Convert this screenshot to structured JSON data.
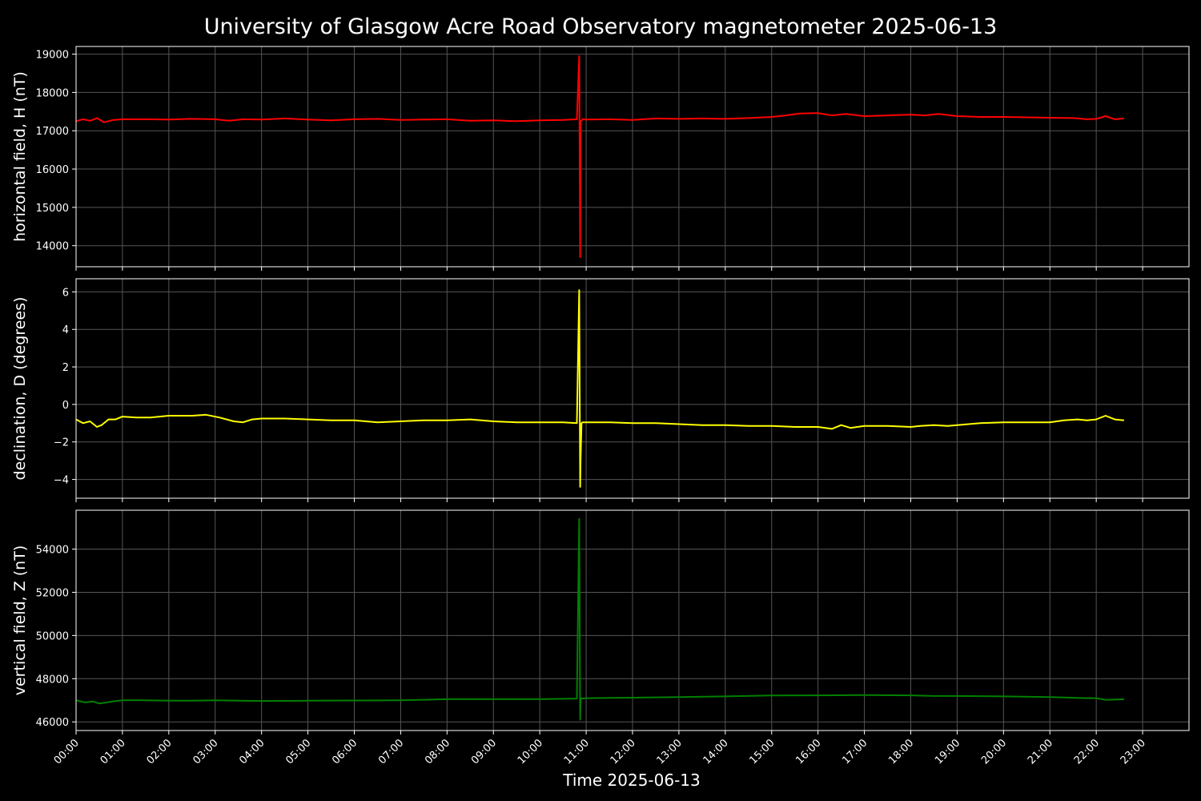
{
  "chart_data": {
    "type": "line",
    "title": "University of Glasgow Acre Road Observatory magnetometer 2025-06-13",
    "xlabel": "Time 2025-06-13",
    "x_ticks": [
      "00:00",
      "01:00",
      "02:00",
      "03:00",
      "04:00",
      "05:00",
      "06:00",
      "07:00",
      "08:00",
      "09:00",
      "10:00",
      "11:00",
      "12:00",
      "13:00",
      "14:00",
      "15:00",
      "16:00",
      "17:00",
      "18:00",
      "19:00",
      "20:00",
      "21:00",
      "22:00",
      "23:00"
    ],
    "xlim_hours": [
      0,
      24
    ],
    "grid": true,
    "panels": [
      {
        "ylabel": "horizontal field, H (nT)",
        "color": "#ff0000",
        "ylim": [
          13450,
          19200
        ],
        "y_ticks": [
          14000,
          15000,
          16000,
          17000,
          18000,
          19000
        ],
        "series": {
          "x": [
            0.0,
            0.15,
            0.3,
            0.45,
            0.6,
            0.8,
            1.0,
            1.5,
            2.0,
            2.5,
            3.0,
            3.3,
            3.6,
            4.0,
            4.5,
            5.0,
            5.5,
            6.0,
            6.5,
            7.0,
            7.5,
            8.0,
            8.5,
            9.0,
            9.5,
            10.0,
            10.5,
            10.8,
            10.85,
            10.87,
            10.88,
            10.9,
            10.92,
            11.0,
            11.5,
            12.0,
            12.5,
            13.0,
            13.5,
            14.0,
            14.5,
            15.0,
            15.3,
            15.6,
            16.0,
            16.3,
            16.6,
            17.0,
            17.5,
            18.0,
            18.3,
            18.6,
            19.0,
            19.5,
            20.0,
            20.5,
            21.0,
            21.5,
            21.8,
            22.0,
            22.2,
            22.4,
            22.6
          ],
          "y": [
            17250,
            17300,
            17260,
            17330,
            17220,
            17280,
            17300,
            17300,
            17290,
            17310,
            17300,
            17260,
            17300,
            17290,
            17320,
            17290,
            17270,
            17300,
            17310,
            17280,
            17290,
            17300,
            17260,
            17270,
            17250,
            17270,
            17280,
            17300,
            18950,
            13700,
            17250,
            17260,
            17300,
            17290,
            17300,
            17280,
            17320,
            17310,
            17320,
            17310,
            17330,
            17360,
            17400,
            17450,
            17460,
            17400,
            17440,
            17380,
            17400,
            17420,
            17400,
            17440,
            17380,
            17360,
            17360,
            17350,
            17340,
            17330,
            17300,
            17310,
            17380,
            17300,
            17320
          ]
        }
      },
      {
        "ylabel": "declination, D (degrees)",
        "color": "#ffff00",
        "ylim": [
          -5.0,
          6.7
        ],
        "y_ticks": [
          -4,
          -2,
          0,
          2,
          4,
          6
        ],
        "series": {
          "x": [
            0.0,
            0.15,
            0.3,
            0.45,
            0.55,
            0.7,
            0.85,
            1.0,
            1.3,
            1.6,
            2.0,
            2.5,
            2.8,
            3.1,
            3.4,
            3.6,
            3.8,
            4.0,
            4.5,
            5.0,
            5.5,
            6.0,
            6.5,
            7.0,
            7.5,
            8.0,
            8.5,
            9.0,
            9.5,
            10.0,
            10.5,
            10.8,
            10.85,
            10.87,
            10.88,
            10.9,
            10.92,
            11.0,
            11.5,
            12.0,
            12.5,
            13.0,
            13.5,
            14.0,
            14.5,
            15.0,
            15.5,
            16.0,
            16.3,
            16.5,
            16.7,
            17.0,
            17.5,
            18.0,
            18.2,
            18.5,
            18.8,
            19.0,
            19.5,
            20.0,
            20.5,
            21.0,
            21.3,
            21.6,
            21.8,
            22.0,
            22.2,
            22.4,
            22.6
          ],
          "y": [
            -0.8,
            -1.0,
            -0.9,
            -1.2,
            -1.1,
            -0.8,
            -0.8,
            -0.65,
            -0.7,
            -0.7,
            -0.6,
            -0.6,
            -0.55,
            -0.7,
            -0.9,
            -0.95,
            -0.8,
            -0.75,
            -0.75,
            -0.8,
            -0.85,
            -0.85,
            -0.95,
            -0.9,
            -0.85,
            -0.85,
            -0.8,
            -0.9,
            -0.95,
            -0.95,
            -0.95,
            -1.0,
            6.1,
            -4.4,
            -3.0,
            -1.0,
            -0.95,
            -0.95,
            -0.95,
            -1.0,
            -1.0,
            -1.05,
            -1.1,
            -1.1,
            -1.15,
            -1.15,
            -1.2,
            -1.2,
            -1.3,
            -1.1,
            -1.25,
            -1.15,
            -1.15,
            -1.2,
            -1.15,
            -1.1,
            -1.15,
            -1.1,
            -1.0,
            -0.95,
            -0.95,
            -0.95,
            -0.85,
            -0.8,
            -0.85,
            -0.8,
            -0.6,
            -0.8,
            -0.85
          ]
        }
      },
      {
        "ylabel": "vertical field, Z (nT)",
        "color": "#008000",
        "ylim": [
          45600,
          55800
        ],
        "y_ticks": [
          46000,
          48000,
          50000,
          52000,
          54000
        ],
        "series": {
          "x": [
            0.0,
            0.2,
            0.35,
            0.5,
            0.8,
            1.0,
            1.5,
            2.0,
            2.5,
            3.0,
            3.5,
            4.0,
            5.0,
            6.0,
            7.0,
            8.0,
            9.0,
            10.0,
            10.8,
            10.85,
            10.87,
            10.88,
            10.9,
            10.92,
            11.0,
            12.0,
            13.0,
            14.0,
            15.0,
            16.0,
            17.0,
            18.0,
            18.5,
            19.0,
            20.0,
            21.0,
            21.8,
            22.0,
            22.2,
            22.6
          ],
          "y": [
            47000,
            46900,
            46950,
            46850,
            46950,
            47000,
            47000,
            46980,
            46980,
            47000,
            46980,
            46970,
            46980,
            46990,
            47000,
            47050,
            47050,
            47050,
            47080,
            55400,
            46100,
            47100,
            47080,
            47080,
            47100,
            47120,
            47150,
            47180,
            47220,
            47230,
            47240,
            47230,
            47200,
            47200,
            47180,
            47150,
            47100,
            47100,
            47020,
            47050
          ]
        }
      }
    ]
  }
}
